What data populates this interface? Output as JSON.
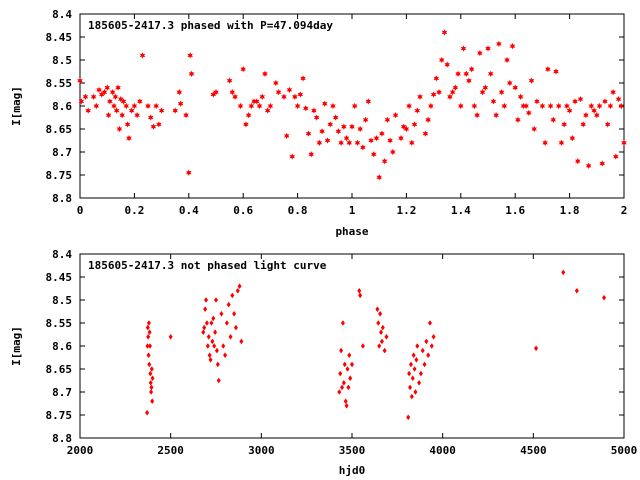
{
  "chart_data": [
    {
      "type": "scatter",
      "title": "185605-2417.3 phased with P=47.094day",
      "xlabel": "phase",
      "ylabel": "I[mag]",
      "xlim": [
        0,
        2
      ],
      "ylim": [
        8.4,
        8.8
      ],
      "y_inverted": true,
      "xticks": [
        "0",
        "0.2",
        "0.4",
        "0.6",
        "0.8",
        "1",
        "1.2",
        "1.4",
        "1.6",
        "1.8",
        "2"
      ],
      "xtick_values": [
        0,
        0.2,
        0.4,
        0.6,
        0.8,
        1,
        1.2,
        1.4,
        1.6,
        1.8,
        2
      ],
      "yticks": [
        "8.4",
        "8.45",
        "8.5",
        "8.55",
        "8.6",
        "8.65",
        "8.7",
        "8.75",
        "8.8"
      ],
      "ytick_values": [
        8.4,
        8.45,
        8.5,
        8.55,
        8.6,
        8.65,
        8.7,
        8.75,
        8.8
      ],
      "marker": "star",
      "color": "#ff0000",
      "points": [
        [
          0.0,
          8.545
        ],
        [
          0.005,
          8.59
        ],
        [
          0.02,
          8.58
        ],
        [
          0.03,
          8.61
        ],
        [
          0.05,
          8.58
        ],
        [
          0.06,
          8.6
        ],
        [
          0.07,
          8.565
        ],
        [
          0.08,
          8.575
        ],
        [
          0.09,
          8.57
        ],
        [
          0.1,
          8.56
        ],
        [
          0.105,
          8.62
        ],
        [
          0.11,
          8.59
        ],
        [
          0.12,
          8.57
        ],
        [
          0.125,
          8.6
        ],
        [
          0.13,
          8.58
        ],
        [
          0.135,
          8.61
        ],
        [
          0.14,
          8.56
        ],
        [
          0.145,
          8.65
        ],
        [
          0.15,
          8.585
        ],
        [
          0.155,
          8.62
        ],
        [
          0.16,
          8.59
        ],
        [
          0.17,
          8.6
        ],
        [
          0.175,
          8.64
        ],
        [
          0.18,
          8.67
        ],
        [
          0.19,
          8.61
        ],
        [
          0.2,
          8.6
        ],
        [
          0.21,
          8.62
        ],
        [
          0.22,
          8.59
        ],
        [
          0.23,
          8.49
        ],
        [
          0.25,
          8.6
        ],
        [
          0.26,
          8.625
        ],
        [
          0.27,
          8.645
        ],
        [
          0.28,
          8.6
        ],
        [
          0.29,
          8.64
        ],
        [
          0.3,
          8.61
        ],
        [
          0.35,
          8.61
        ],
        [
          0.365,
          8.57
        ],
        [
          0.37,
          8.595
        ],
        [
          0.39,
          8.62
        ],
        [
          0.4,
          8.745
        ],
        [
          0.405,
          8.49
        ],
        [
          0.41,
          8.53
        ],
        [
          0.49,
          8.575
        ],
        [
          0.5,
          8.57
        ],
        [
          0.55,
          8.545
        ],
        [
          0.56,
          8.57
        ],
        [
          0.57,
          8.58
        ],
        [
          0.59,
          8.6
        ],
        [
          0.6,
          8.52
        ],
        [
          0.61,
          8.64
        ],
        [
          0.62,
          8.62
        ],
        [
          0.63,
          8.6
        ],
        [
          0.64,
          8.59
        ],
        [
          0.65,
          8.59
        ],
        [
          0.66,
          8.6
        ],
        [
          0.67,
          8.58
        ],
        [
          0.68,
          8.53
        ],
        [
          0.69,
          8.61
        ],
        [
          0.7,
          8.6
        ],
        [
          0.72,
          8.55
        ],
        [
          0.73,
          8.57
        ],
        [
          0.75,
          8.58
        ],
        [
          0.76,
          8.665
        ],
        [
          0.77,
          8.565
        ],
        [
          0.78,
          8.71
        ],
        [
          0.79,
          8.58
        ],
        [
          0.8,
          8.6
        ],
        [
          0.81,
          8.575
        ],
        [
          0.82,
          8.54
        ],
        [
          0.83,
          8.605
        ],
        [
          0.84,
          8.66
        ],
        [
          0.85,
          8.705
        ],
        [
          0.86,
          8.61
        ],
        [
          0.87,
          8.625
        ],
        [
          0.88,
          8.68
        ],
        [
          0.89,
          8.655
        ],
        [
          0.9,
          8.595
        ],
        [
          0.91,
          8.675
        ],
        [
          0.92,
          8.64
        ],
        [
          0.93,
          8.6
        ],
        [
          0.94,
          8.625
        ],
        [
          0.95,
          8.655
        ],
        [
          0.96,
          8.68
        ],
        [
          0.97,
          8.645
        ],
        [
          0.98,
          8.67
        ],
        [
          0.99,
          8.68
        ],
        [
          1.0,
          8.645
        ],
        [
          1.01,
          8.6
        ],
        [
          1.02,
          8.68
        ],
        [
          1.03,
          8.65
        ],
        [
          1.04,
          8.69
        ],
        [
          1.05,
          8.63
        ],
        [
          1.06,
          8.59
        ],
        [
          1.07,
          8.675
        ],
        [
          1.08,
          8.705
        ],
        [
          1.09,
          8.67
        ],
        [
          1.1,
          8.755
        ],
        [
          1.11,
          8.66
        ],
        [
          1.12,
          8.72
        ],
        [
          1.13,
          8.63
        ],
        [
          1.14,
          8.675
        ],
        [
          1.15,
          8.7
        ],
        [
          1.16,
          8.62
        ],
        [
          1.18,
          8.67
        ],
        [
          1.19,
          8.645
        ],
        [
          1.2,
          8.65
        ],
        [
          1.21,
          8.6
        ],
        [
          1.22,
          8.68
        ],
        [
          1.23,
          8.64
        ],
        [
          1.24,
          8.61
        ],
        [
          1.25,
          8.58
        ],
        [
          1.27,
          8.66
        ],
        [
          1.28,
          8.63
        ],
        [
          1.29,
          8.6
        ],
        [
          1.3,
          8.575
        ],
        [
          1.31,
          8.54
        ],
        [
          1.32,
          8.57
        ],
        [
          1.33,
          8.5
        ],
        [
          1.34,
          8.44
        ],
        [
          1.35,
          8.51
        ],
        [
          1.36,
          8.58
        ],
        [
          1.37,
          8.57
        ],
        [
          1.38,
          8.56
        ],
        [
          1.39,
          8.53
        ],
        [
          1.4,
          8.6
        ],
        [
          1.41,
          8.475
        ],
        [
          1.42,
          8.53
        ],
        [
          1.43,
          8.545
        ],
        [
          1.44,
          8.52
        ],
        [
          1.45,
          8.6
        ],
        [
          1.46,
          8.62
        ],
        [
          1.47,
          8.485
        ],
        [
          1.48,
          8.57
        ],
        [
          1.49,
          8.56
        ],
        [
          1.5,
          8.475
        ],
        [
          1.51,
          8.53
        ],
        [
          1.52,
          8.59
        ],
        [
          1.53,
          8.62
        ],
        [
          1.54,
          8.465
        ],
        [
          1.55,
          8.57
        ],
        [
          1.56,
          8.6
        ],
        [
          1.57,
          8.5
        ],
        [
          1.58,
          8.55
        ],
        [
          1.59,
          8.47
        ],
        [
          1.6,
          8.56
        ],
        [
          1.61,
          8.63
        ],
        [
          1.62,
          8.58
        ],
        [
          1.63,
          8.6
        ],
        [
          1.64,
          8.6
        ],
        [
          1.65,
          8.615
        ],
        [
          1.66,
          8.545
        ],
        [
          1.67,
          8.65
        ],
        [
          1.68,
          8.59
        ],
        [
          1.7,
          8.6
        ],
        [
          1.71,
          8.68
        ],
        [
          1.72,
          8.52
        ],
        [
          1.73,
          8.6
        ],
        [
          1.74,
          8.63
        ],
        [
          1.75,
          8.525
        ],
        [
          1.76,
          8.6
        ],
        [
          1.77,
          8.68
        ],
        [
          1.78,
          8.64
        ],
        [
          1.79,
          8.6
        ],
        [
          1.8,
          8.61
        ],
        [
          1.81,
          8.67
        ],
        [
          1.82,
          8.59
        ],
        [
          1.83,
          8.72
        ],
        [
          1.84,
          8.585
        ],
        [
          1.85,
          8.64
        ],
        [
          1.86,
          8.62
        ],
        [
          1.87,
          8.73
        ],
        [
          1.88,
          8.6
        ],
        [
          1.89,
          8.61
        ],
        [
          1.9,
          8.62
        ],
        [
          1.91,
          8.6
        ],
        [
          1.92,
          8.725
        ],
        [
          1.93,
          8.59
        ],
        [
          1.94,
          8.64
        ],
        [
          1.95,
          8.6
        ],
        [
          1.96,
          8.57
        ],
        [
          1.97,
          8.71
        ],
        [
          1.98,
          8.585
        ],
        [
          1.99,
          8.6
        ],
        [
          2.0,
          8.68
        ]
      ]
    },
    {
      "type": "scatter",
      "title": "185605-2417.3 not phased light curve",
      "xlabel": "hjd0",
      "ylabel": "I[mag]",
      "xlim": [
        2000,
        5000
      ],
      "ylim": [
        8.4,
        8.8
      ],
      "y_inverted": true,
      "xticks": [
        "2000",
        "2500",
        "3000",
        "3500",
        "4000",
        "4500",
        "5000"
      ],
      "xtick_values": [
        2000,
        2500,
        3000,
        3500,
        4000,
        4500,
        5000
      ],
      "yticks": [
        "8.4",
        "8.45",
        "8.5",
        "8.55",
        "8.6",
        "8.65",
        "8.7",
        "8.75",
        "8.8"
      ],
      "ytick_values": [
        8.4,
        8.45,
        8.5,
        8.55,
        8.6,
        8.65,
        8.7,
        8.75,
        8.8
      ],
      "marker": "diamond",
      "color": "#ff0000",
      "points": [
        [
          2370,
          8.745
        ],
        [
          2372,
          8.6
        ],
        [
          2374,
          8.56
        ],
        [
          2376,
          8.58
        ],
        [
          2378,
          8.62
        ],
        [
          2380,
          8.55
        ],
        [
          2382,
          8.64
        ],
        [
          2384,
          8.57
        ],
        [
          2386,
          8.6
        ],
        [
          2388,
          8.66
        ],
        [
          2390,
          8.68
        ],
        [
          2392,
          8.7
        ],
        [
          2394,
          8.69
        ],
        [
          2396,
          8.65
        ],
        [
          2398,
          8.72
        ],
        [
          2400,
          8.67
        ],
        [
          2500,
          8.58
        ],
        [
          2680,
          8.57
        ],
        [
          2685,
          8.56
        ],
        [
          2690,
          8.52
        ],
        [
          2695,
          8.5
        ],
        [
          2700,
          8.55
        ],
        [
          2705,
          8.6
        ],
        [
          2710,
          8.58
        ],
        [
          2715,
          8.62
        ],
        [
          2720,
          8.63
        ],
        [
          2725,
          8.55
        ],
        [
          2730,
          8.59
        ],
        [
          2735,
          8.54
        ],
        [
          2740,
          8.6
        ],
        [
          2745,
          8.57
        ],
        [
          2750,
          8.5
        ],
        [
          2755,
          8.61
        ],
        [
          2760,
          8.64
        ],
        [
          2765,
          8.675
        ],
        [
          2780,
          8.53
        ],
        [
          2790,
          8.6
        ],
        [
          2800,
          8.62
        ],
        [
          2810,
          8.55
        ],
        [
          2820,
          8.51
        ],
        [
          2830,
          8.58
        ],
        [
          2840,
          8.49
        ],
        [
          2850,
          8.53
        ],
        [
          2860,
          8.56
        ],
        [
          2870,
          8.48
        ],
        [
          2880,
          8.47
        ],
        [
          2890,
          8.59
        ],
        [
          3430,
          8.7
        ],
        [
          3435,
          8.66
        ],
        [
          3440,
          8.61
        ],
        [
          3445,
          8.69
        ],
        [
          3450,
          8.55
        ],
        [
          3455,
          8.68
        ],
        [
          3460,
          8.64
        ],
        [
          3465,
          8.72
        ],
        [
          3470,
          8.73
        ],
        [
          3475,
          8.65
        ],
        [
          3480,
          8.69
        ],
        [
          3485,
          8.62
        ],
        [
          3490,
          8.67
        ],
        [
          3500,
          8.64
        ],
        [
          3540,
          8.48
        ],
        [
          3545,
          8.49
        ],
        [
          3560,
          8.6
        ],
        [
          3640,
          8.52
        ],
        [
          3645,
          8.55
        ],
        [
          3650,
          8.6
        ],
        [
          3655,
          8.53
        ],
        [
          3660,
          8.57
        ],
        [
          3665,
          8.59
        ],
        [
          3670,
          8.56
        ],
        [
          3680,
          8.61
        ],
        [
          3690,
          8.58
        ],
        [
          3810,
          8.755
        ],
        [
          3815,
          8.66
        ],
        [
          3820,
          8.69
        ],
        [
          3825,
          8.64
        ],
        [
          3830,
          8.71
        ],
        [
          3835,
          8.67
        ],
        [
          3840,
          8.62
        ],
        [
          3845,
          8.65
        ],
        [
          3850,
          8.7
        ],
        [
          3855,
          8.63
        ],
        [
          3860,
          8.6
        ],
        [
          3870,
          8.68
        ],
        [
          3880,
          8.66
        ],
        [
          3890,
          8.61
        ],
        [
          3900,
          8.64
        ],
        [
          3910,
          8.59
        ],
        [
          3920,
          8.62
        ],
        [
          3930,
          8.55
        ],
        [
          3940,
          8.6
        ],
        [
          3950,
          8.58
        ],
        [
          4515,
          8.605
        ],
        [
          4665,
          8.44
        ],
        [
          4740,
          8.48
        ],
        [
          4890,
          8.495
        ]
      ]
    }
  ]
}
